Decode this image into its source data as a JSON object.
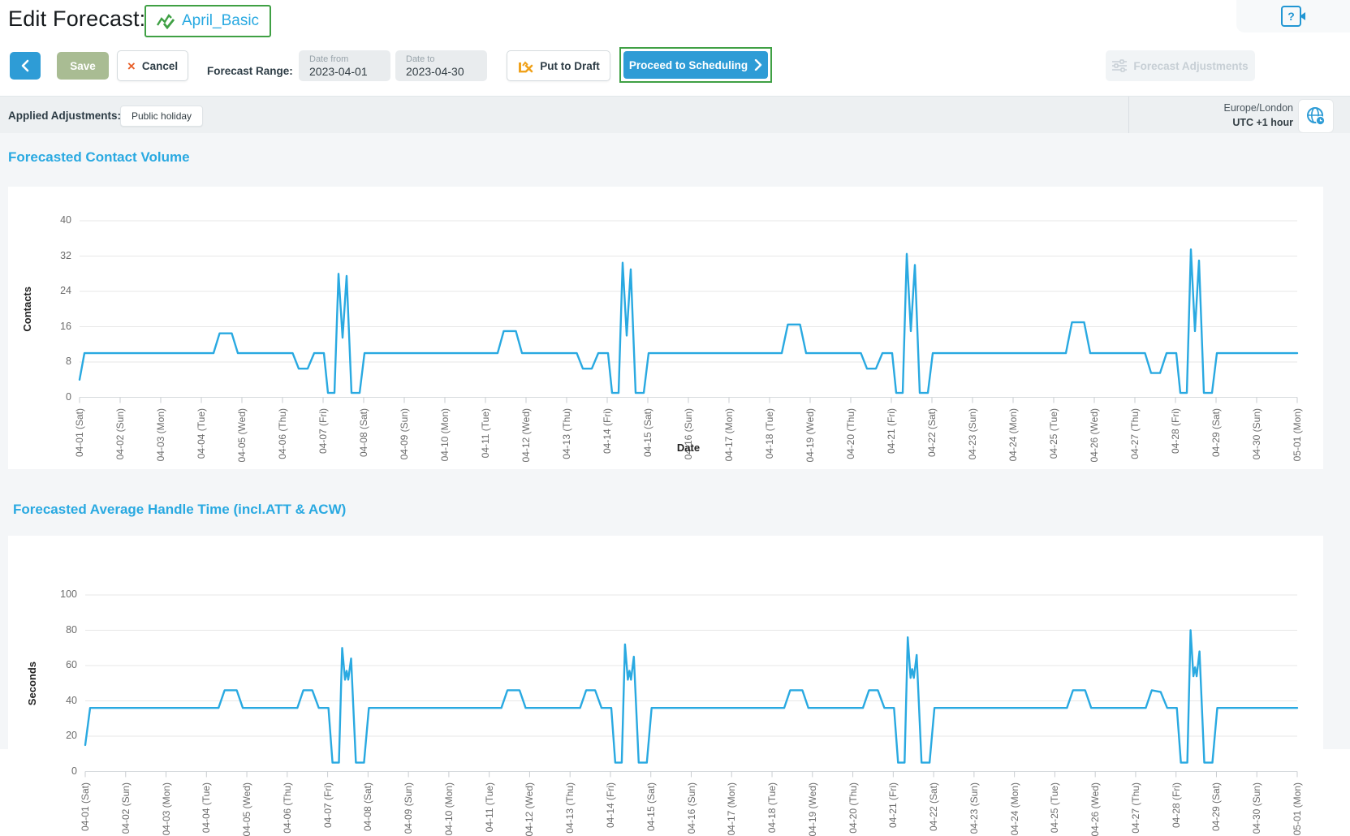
{
  "header": {
    "title": "Edit Forecast:",
    "forecast_name": "April_Basic",
    "forecast_icon": "chart-check-icon",
    "help_icon_glyph": "?"
  },
  "toolbar": {
    "back_icon": "chevron-left-icon",
    "save_label": "Save",
    "cancel_icon": "×",
    "cancel_label": "Cancel",
    "forecast_range_label": "Forecast Range:",
    "date_from": {
      "label": "Date from",
      "value": "2023-04-01"
    },
    "date_to": {
      "label": "Date to",
      "value": "2023-04-30"
    },
    "put_to_draft_label": "Put to Draft",
    "put_to_draft_icon": "chart-cross-icon",
    "proceed_label": "Proceed to Scheduling",
    "proceed_icon": "chevron-right-icon",
    "forecast_adjustments_label": "Forecast Adjustments",
    "forecast_adjustments_icon": "sliders-icon"
  },
  "adjustments_bar": {
    "label": "Applied Adjustments:",
    "chips": [
      "Public holiday"
    ],
    "timezone": {
      "region": "Europe/London",
      "offset": "UTC +1 hour",
      "icon": "globe-icon"
    }
  },
  "colors": {
    "accent_cyan": "#29a9e1",
    "button_blue": "#2e9cd6",
    "highlight_green": "#3fa044",
    "save_green": "#a9bc93",
    "cancel_orange": "#e8612c",
    "draft_orange": "#f0a21d"
  },
  "chart_data": [
    {
      "type": "line",
      "title": "Forecasted Contact Volume",
      "ylabel": "Contacts",
      "xlabel": "Date",
      "ylim": [
        0,
        40
      ],
      "yticks": [
        0,
        8,
        16,
        24,
        32,
        40
      ],
      "grid": true,
      "legend": "none",
      "color": "#29a9e1",
      "categories": [
        "04-01 (Sat)",
        "04-02 (Sun)",
        "04-03 (Mon)",
        "04-04 (Tue)",
        "04-05 (Wed)",
        "04-06 (Thu)",
        "04-07 (Fri)",
        "04-08 (Sat)",
        "04-09 (Sun)",
        "04-10 (Mon)",
        "04-11 (Tue)",
        "04-12 (Wed)",
        "04-13 (Thu)",
        "04-14 (Fri)",
        "04-15 (Sat)",
        "04-16 (Sun)",
        "04-17 (Mon)",
        "04-18 (Tue)",
        "04-19 (Wed)",
        "04-20 (Thu)",
        "04-21 (Fri)",
        "04-22 (Sat)",
        "04-23 (Sun)",
        "04-24 (Mon)",
        "04-25 (Tue)",
        "04-26 (Wed)",
        "04-27 (Thu)",
        "04-28 (Fri)",
        "04-29 (Sat)",
        "04-30 (Sun)",
        "05-01 (Mon)"
      ],
      "series": [
        {
          "name": "Contacts",
          "points": [
            [
              0,
              4
            ],
            [
              0.12,
              10
            ],
            [
              3.3,
              10
            ],
            [
              3.45,
              14.5
            ],
            [
              3.75,
              14.5
            ],
            [
              3.9,
              10
            ],
            [
              5.25,
              10
            ],
            [
              5.4,
              6.5
            ],
            [
              5.62,
              6.5
            ],
            [
              5.78,
              10
            ],
            [
              6.02,
              10
            ],
            [
              6.12,
              1
            ],
            [
              6.28,
              1
            ],
            [
              6.38,
              28
            ],
            [
              6.48,
              13.5
            ],
            [
              6.58,
              27.5
            ],
            [
              6.7,
              1
            ],
            [
              6.9,
              1
            ],
            [
              7.02,
              10
            ],
            [
              10.3,
              10
            ],
            [
              10.45,
              15
            ],
            [
              10.75,
              15
            ],
            [
              10.9,
              10
            ],
            [
              12.25,
              10
            ],
            [
              12.4,
              6.5
            ],
            [
              12.62,
              6.5
            ],
            [
              12.78,
              10
            ],
            [
              13.02,
              10
            ],
            [
              13.12,
              1
            ],
            [
              13.28,
              1
            ],
            [
              13.38,
              30.5
            ],
            [
              13.48,
              14
            ],
            [
              13.58,
              29
            ],
            [
              13.7,
              1
            ],
            [
              13.9,
              1
            ],
            [
              14.02,
              10
            ],
            [
              17.3,
              10
            ],
            [
              17.45,
              16.5
            ],
            [
              17.75,
              16.5
            ],
            [
              17.9,
              10
            ],
            [
              19.25,
              10
            ],
            [
              19.4,
              6.5
            ],
            [
              19.62,
              6.5
            ],
            [
              19.78,
              10
            ],
            [
              20.02,
              10
            ],
            [
              20.12,
              1
            ],
            [
              20.28,
              1
            ],
            [
              20.38,
              32.5
            ],
            [
              20.48,
              15
            ],
            [
              20.58,
              30
            ],
            [
              20.7,
              1
            ],
            [
              20.9,
              1
            ],
            [
              21.02,
              10
            ],
            [
              24.3,
              10
            ],
            [
              24.45,
              17
            ],
            [
              24.75,
              17
            ],
            [
              24.9,
              10
            ],
            [
              26.25,
              10
            ],
            [
              26.4,
              5.5
            ],
            [
              26.62,
              5.5
            ],
            [
              26.78,
              10
            ],
            [
              27.02,
              10
            ],
            [
              27.12,
              1
            ],
            [
              27.28,
              1
            ],
            [
              27.38,
              33.5
            ],
            [
              27.48,
              15
            ],
            [
              27.58,
              31
            ],
            [
              27.7,
              1
            ],
            [
              27.9,
              1
            ],
            [
              28.02,
              10
            ],
            [
              30,
              10
            ]
          ]
        }
      ]
    },
    {
      "type": "line",
      "title": "Forecasted Average Handle Time (incl.ATT & ACW)",
      "ylabel": "Seconds",
      "xlabel": "",
      "ylim": [
        0,
        100
      ],
      "yticks": [
        0,
        20,
        40,
        60,
        80,
        100
      ],
      "grid": true,
      "legend": "none",
      "color": "#29a9e1",
      "categories": [
        "04-01 (Sat)",
        "04-02 (Sun)",
        "04-03 (Mon)",
        "04-04 (Tue)",
        "04-05 (Wed)",
        "04-06 (Thu)",
        "04-07 (Fri)",
        "04-08 (Sat)",
        "04-09 (Sun)",
        "04-10 (Mon)",
        "04-11 (Tue)",
        "04-12 (Wed)",
        "04-13 (Thu)",
        "04-14 (Fri)",
        "04-15 (Sat)",
        "04-16 (Sun)",
        "04-17 (Mon)",
        "04-18 (Tue)",
        "04-19 (Wed)",
        "04-20 (Thu)",
        "04-21 (Fri)",
        "04-22 (Sat)",
        "04-23 (Sun)",
        "04-24 (Mon)",
        "04-25 (Tue)",
        "04-26 (Wed)",
        "04-27 (Thu)",
        "04-28 (Fri)",
        "04-29 (Sat)",
        "04-30 (Sun)",
        "05-01 (Mon)"
      ],
      "series": [
        {
          "name": "Seconds",
          "points": [
            [
              0,
              15
            ],
            [
              0.12,
              36
            ],
            [
              3.3,
              36
            ],
            [
              3.45,
              46
            ],
            [
              3.75,
              46
            ],
            [
              3.9,
              36
            ],
            [
              5.25,
              36
            ],
            [
              5.4,
              46
            ],
            [
              5.62,
              46
            ],
            [
              5.78,
              36
            ],
            [
              6.02,
              36
            ],
            [
              6.12,
              5
            ],
            [
              6.28,
              5
            ],
            [
              6.36,
              70
            ],
            [
              6.43,
              52
            ],
            [
              6.47,
              57
            ],
            [
              6.51,
              52
            ],
            [
              6.58,
              64
            ],
            [
              6.7,
              5
            ],
            [
              6.9,
              5
            ],
            [
              7.02,
              36
            ],
            [
              10.3,
              36
            ],
            [
              10.45,
              46
            ],
            [
              10.75,
              46
            ],
            [
              10.9,
              36
            ],
            [
              12.25,
              36
            ],
            [
              12.4,
              46
            ],
            [
              12.62,
              46
            ],
            [
              12.78,
              36
            ],
            [
              13.02,
              36
            ],
            [
              13.12,
              5
            ],
            [
              13.28,
              5
            ],
            [
              13.36,
              72
            ],
            [
              13.43,
              52
            ],
            [
              13.47,
              57
            ],
            [
              13.51,
              52
            ],
            [
              13.58,
              65
            ],
            [
              13.7,
              5
            ],
            [
              13.9,
              5
            ],
            [
              14.02,
              36
            ],
            [
              17.3,
              36
            ],
            [
              17.45,
              46
            ],
            [
              17.75,
              46
            ],
            [
              17.9,
              36
            ],
            [
              19.25,
              36
            ],
            [
              19.4,
              46
            ],
            [
              19.62,
              46
            ],
            [
              19.78,
              36
            ],
            [
              20.02,
              36
            ],
            [
              20.12,
              5
            ],
            [
              20.28,
              5
            ],
            [
              20.36,
              76
            ],
            [
              20.43,
              53
            ],
            [
              20.47,
              58
            ],
            [
              20.51,
              53
            ],
            [
              20.58,
              66
            ],
            [
              20.7,
              5
            ],
            [
              20.9,
              5
            ],
            [
              21.02,
              36
            ],
            [
              24.3,
              36
            ],
            [
              24.45,
              46
            ],
            [
              24.75,
              46
            ],
            [
              24.9,
              36
            ],
            [
              26.25,
              36
            ],
            [
              26.4,
              46
            ],
            [
              26.62,
              45
            ],
            [
              26.78,
              36
            ],
            [
              27.02,
              36
            ],
            [
              27.12,
              5
            ],
            [
              27.28,
              5
            ],
            [
              27.36,
              80
            ],
            [
              27.43,
              54
            ],
            [
              27.47,
              59
            ],
            [
              27.51,
              54
            ],
            [
              27.58,
              68
            ],
            [
              27.7,
              5
            ],
            [
              27.9,
              5
            ],
            [
              28.02,
              36
            ],
            [
              30,
              36
            ]
          ]
        }
      ]
    }
  ]
}
